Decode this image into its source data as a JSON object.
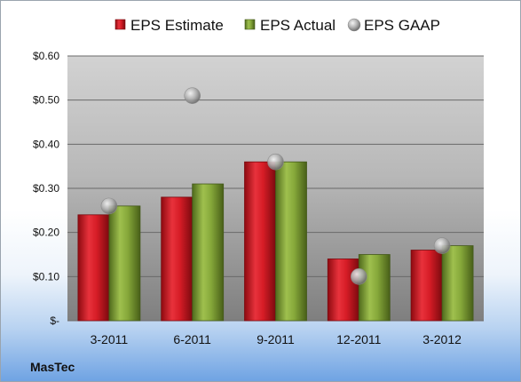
{
  "company": "MasTec",
  "colors": {
    "estimate": "#c8102e",
    "actual": "#7a9a2e",
    "gaap": "#a9a9a9"
  },
  "chart_data": {
    "type": "bar",
    "categories": [
      "3-2011",
      "6-2011",
      "9-2011",
      "12-2011",
      "3-2012"
    ],
    "series": [
      {
        "name": "EPS Estimate",
        "values": [
          0.24,
          0.28,
          0.36,
          0.14,
          0.16
        ],
        "kind": "bar"
      },
      {
        "name": "EPS Actual",
        "values": [
          0.26,
          0.31,
          0.36,
          0.15,
          0.17
        ],
        "kind": "bar"
      },
      {
        "name": "EPS GAAP",
        "values": [
          0.26,
          0.51,
          0.36,
          0.1,
          0.17
        ],
        "kind": "marker"
      }
    ],
    "ylim": [
      0,
      0.6
    ],
    "yticks": [
      0,
      0.1,
      0.2,
      0.3,
      0.4,
      0.5,
      0.6
    ],
    "ytick_labels": [
      "$-",
      "$0.10",
      "$0.20",
      "$0.30",
      "$0.40",
      "$0.50",
      "$0.60"
    ],
    "grid": true,
    "legend_position": "top"
  }
}
